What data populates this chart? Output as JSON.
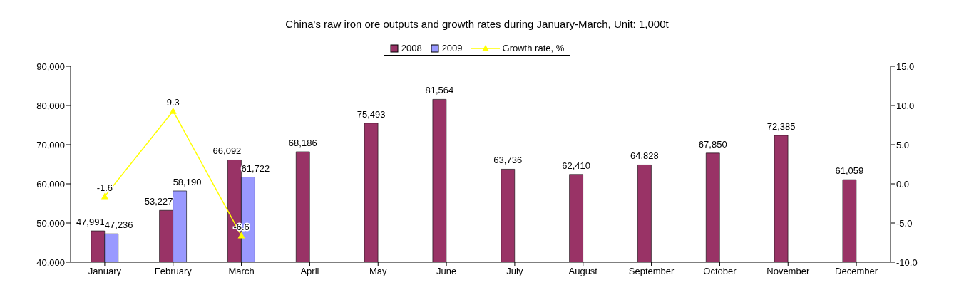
{
  "chart_data": {
    "type": "bar",
    "title": "China's raw iron ore outputs and growth rates during January-March, Unit: 1,000t",
    "categories": [
      "January",
      "February",
      "March",
      "April",
      "May",
      "June",
      "July",
      "August",
      "September",
      "October",
      "November",
      "December"
    ],
    "series": [
      {
        "name": "2008",
        "color": "#993366",
        "values": [
          47991,
          53227,
          66092,
          68186,
          75493,
          81564,
          63736,
          62410,
          64828,
          67850,
          72385,
          61059
        ],
        "value_labels": [
          "47,991",
          "53,227",
          "66,092",
          "68,186",
          "75,493",
          "81,564",
          "63,736",
          "62,410",
          "64,828",
          "67,850",
          "72,385",
          "61,059"
        ]
      },
      {
        "name": "2009",
        "color": "#9999ff",
        "values": [
          47236,
          58190,
          61722,
          null,
          null,
          null,
          null,
          null,
          null,
          null,
          null,
          null
        ],
        "value_labels": [
          "47,236",
          "58,190",
          "61,722",
          null,
          null,
          null,
          null,
          null,
          null,
          null,
          null,
          null
        ]
      },
      {
        "name": "Growth rate, %",
        "type": "line",
        "axis": "y2",
        "color": "#ffff00",
        "marker": "triangle",
        "values": [
          -1.6,
          9.3,
          -6.6,
          null,
          null,
          null,
          null,
          null,
          null,
          null,
          null,
          null
        ]
      }
    ],
    "ylim": [
      40000,
      90000
    ],
    "yticks": [
      {
        "value": 40000,
        "label": "40,000"
      },
      {
        "value": 50000,
        "label": "50,000"
      },
      {
        "value": 60000,
        "label": "60,000"
      },
      {
        "value": 70000,
        "label": "70,000"
      },
      {
        "value": 80000,
        "label": "80,000"
      },
      {
        "value": 90000,
        "label": "90,000"
      }
    ],
    "y2lim": [
      -10,
      15
    ],
    "y2ticks": [
      {
        "value": -10,
        "label": "-10.0"
      },
      {
        "value": -5,
        "label": "-5.0"
      },
      {
        "value": 0,
        "label": "0.0"
      },
      {
        "value": 5,
        "label": "5.0"
      },
      {
        "value": 10,
        "label": "10.0"
      },
      {
        "value": 15,
        "label": "15.0"
      }
    ],
    "data_labels": true,
    "grid": false,
    "legend": "top"
  }
}
